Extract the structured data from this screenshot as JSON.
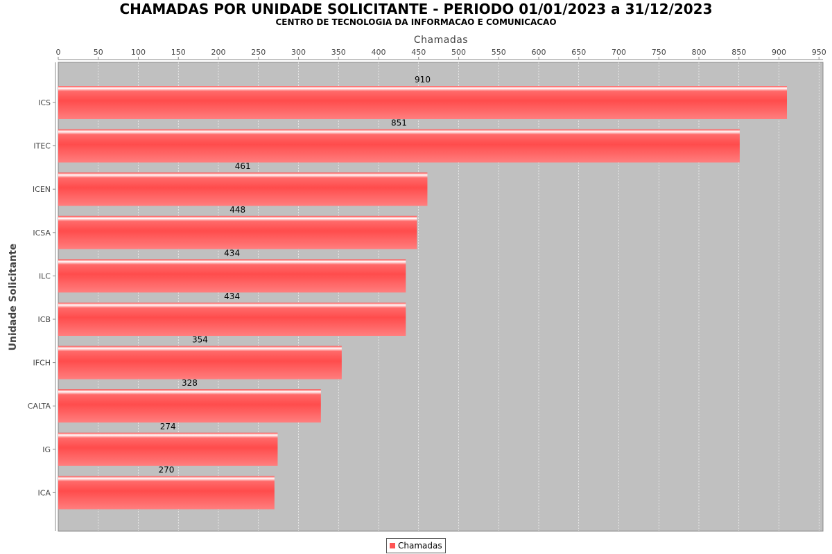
{
  "chart_data": {
    "type": "bar",
    "orientation": "horizontal",
    "title": "CHAMADAS POR UNIDADE SOLICITANTE - PERIODO 01/01/2023 a 31/12/2023",
    "subtitle": "CENTRO DE TECNOLOGIA DA INFORMACAO E COMUNICACAO",
    "xlabel": "Chamadas",
    "ylabel": "Unidade Solicitante",
    "xlim": [
      0,
      955
    ],
    "xticks": [
      0,
      50,
      100,
      150,
      200,
      250,
      300,
      350,
      400,
      450,
      500,
      550,
      600,
      650,
      700,
      750,
      800,
      850,
      900,
      950
    ],
    "categories": [
      "ICS",
      "ITEC",
      "ICEN",
      "ICSA",
      "ILC",
      "ICB",
      "IFCH",
      "CALTA",
      "IG",
      "ICA"
    ],
    "series": [
      {
        "name": "Chamadas",
        "values": [
          910,
          851,
          461,
          448,
          434,
          434,
          354,
          328,
          274,
          270
        ],
        "color": "#ff5555"
      }
    ],
    "x_axis_position": "top",
    "grid": true,
    "plot_background": "#c0c0c0",
    "legend_position": "bottom"
  }
}
